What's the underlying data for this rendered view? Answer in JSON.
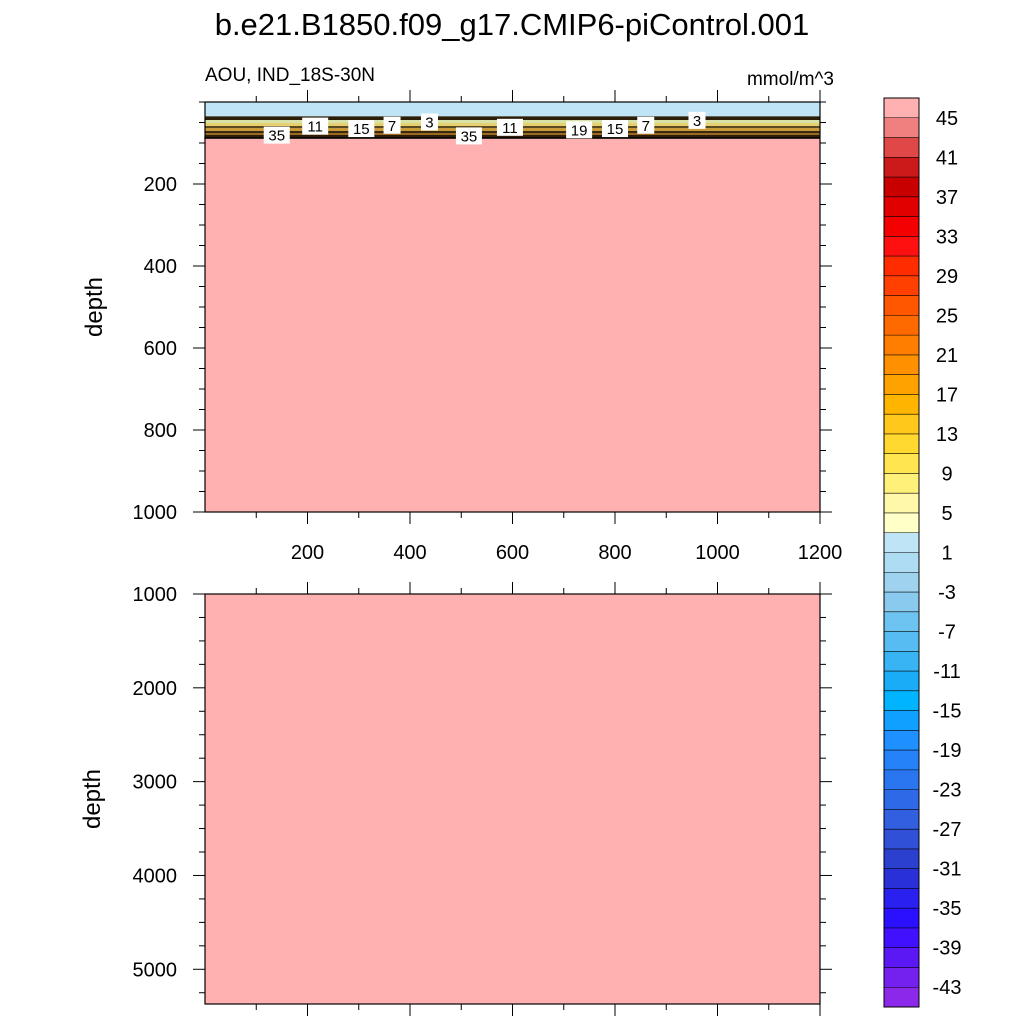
{
  "figure": {
    "title": "b.e21.B1850.f09_g17.CMIP6-piControl.001",
    "subtitle_left": "AOU, IND_18S-30N",
    "subtitle_right": "mmol/m^3"
  },
  "chart_data": [
    {
      "type": "heatmap",
      "panel": "upper",
      "ylabel": "depth",
      "xlabel": "",
      "xlim": [
        0,
        1200
      ],
      "ylim": [
        0,
        1000
      ],
      "x_ticks": [
        200,
        400,
        600,
        800,
        1000,
        1200
      ],
      "y_ticks": [
        200,
        400,
        600,
        800,
        1000
      ],
      "y_reversed": true,
      "fill_regions": [
        {
          "depth_top": 0,
          "depth_bottom": 35,
          "value": -3,
          "color": "#bfe4f5"
        },
        {
          "depth_top": 35,
          "depth_bottom": 90,
          "value": 25,
          "color": "#3a2a10",
          "note": "dense contour band"
        },
        {
          "depth_top": 90,
          "depth_bottom": 1000,
          "value": 47,
          "color": "#ffb0b0"
        }
      ],
      "contour_labels": [
        {
          "text": "35",
          "x": 140,
          "depth": 82
        },
        {
          "text": "11",
          "x": 215,
          "depth": 60
        },
        {
          "text": "15",
          "x": 305,
          "depth": 66
        },
        {
          "text": "7",
          "x": 365,
          "depth": 58
        },
        {
          "text": "3",
          "x": 438,
          "depth": 50
        },
        {
          "text": "35",
          "x": 515,
          "depth": 84
        },
        {
          "text": "11",
          "x": 595,
          "depth": 63
        },
        {
          "text": "19",
          "x": 730,
          "depth": 69
        },
        {
          "text": "15",
          "x": 800,
          "depth": 66
        },
        {
          "text": "7",
          "x": 860,
          "depth": 58
        },
        {
          "text": "3",
          "x": 960,
          "depth": 46
        }
      ]
    },
    {
      "type": "heatmap",
      "panel": "lower",
      "ylabel": "depth",
      "xlabel": "",
      "xlim": [
        0,
        1200
      ],
      "ylim": [
        1000,
        5370
      ],
      "y_ticks": [
        1000,
        2000,
        3000,
        4000,
        5000
      ],
      "y_reversed": true,
      "fill_regions": [
        {
          "depth_top": 1000,
          "depth_bottom": 5370,
          "value": 47,
          "color": "#ffb0b0"
        }
      ]
    }
  ],
  "colorbar": {
    "tick_labels": [
      "45",
      "41",
      "37",
      "33",
      "29",
      "25",
      "21",
      "17",
      "13",
      "9",
      "5",
      "1",
      "-3",
      "-7",
      "-11",
      "-15",
      "-19",
      "-23",
      "-27",
      "-31",
      "-35",
      "-39",
      "-43"
    ],
    "colors": [
      "#ffb0b0",
      "#f08080",
      "#e04848",
      "#cc1a1a",
      "#c80000",
      "#e00000",
      "#f40000",
      "#ff1010",
      "#ff2c00",
      "#ff4000",
      "#ff5600",
      "#ff6a00",
      "#ff7e00",
      "#ff9000",
      "#ffa200",
      "#ffb400",
      "#ffc81a",
      "#ffd830",
      "#ffe650",
      "#fff07a",
      "#fff8a8",
      "#ffffc8",
      "#bfe4f5",
      "#aedcf2",
      "#9ed2ef",
      "#8acaee",
      "#6ec4f0",
      "#56bcf2",
      "#38b4f4",
      "#1aacf6",
      "#00b4ff",
      "#10a0ff",
      "#1e90ff",
      "#2682f8",
      "#2a76f0",
      "#2e6ae8",
      "#325ee0",
      "#3050d8",
      "#2c40d0",
      "#2a30d8",
      "#2a20f0",
      "#2a10ff",
      "#4010ff",
      "#5c18f4",
      "#7420ee",
      "#8c28ea"
    ]
  }
}
